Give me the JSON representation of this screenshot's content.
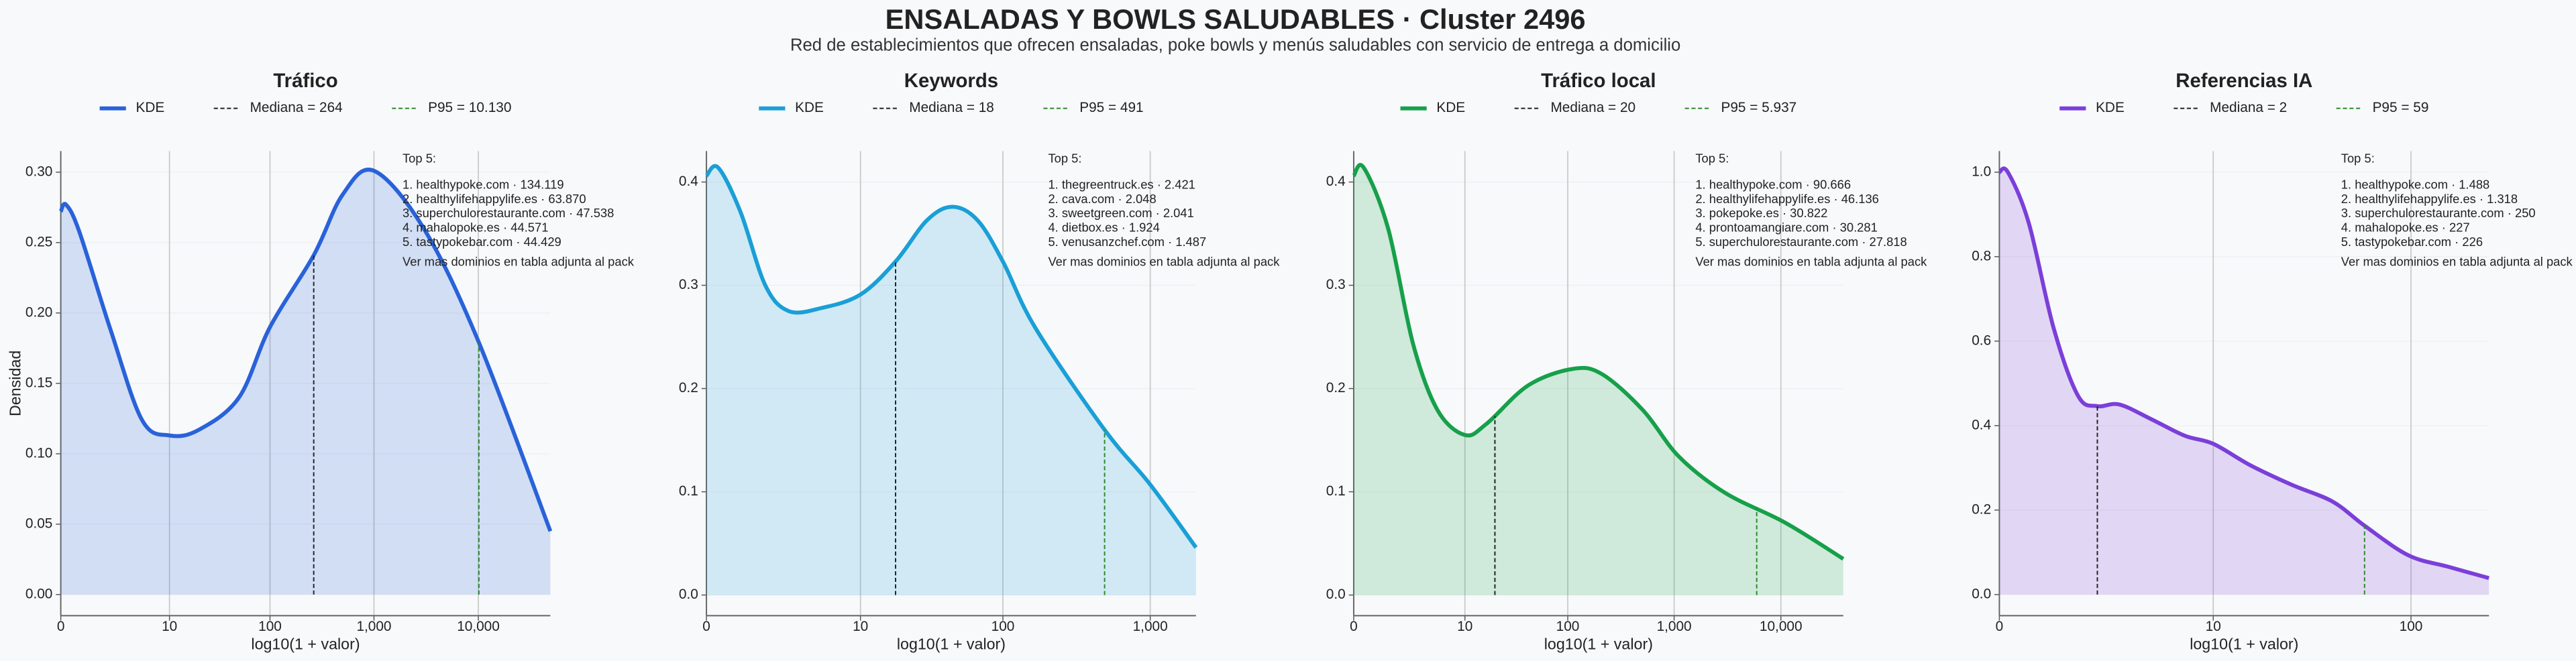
{
  "title": "ENSALADAS Y BOWLS SALUDABLES · Cluster 2496",
  "subtitle": "Red de establecimientos que ofrecen ensaladas, poke bowls y menús saludables con servicio de entrega a domicilio",
  "chart_data": [
    {
      "type": "kde",
      "title": "Tráfico",
      "x_label": "log10(1 + valor)",
      "y_label": "Densidad",
      "xscale": "log1p",
      "grid": true,
      "x": [
        0,
        0.12,
        0.5,
        2,
        5,
        10,
        20,
        50,
        100,
        264,
        500,
        1000,
        3000,
        10000,
        49000
      ],
      "series": [
        {
          "name": "KDE",
          "color": "#2962d9",
          "values": [
            0.272,
            0.277,
            0.258,
            0.188,
            0.124,
            0.113,
            0.117,
            0.14,
            0.19,
            0.241,
            0.284,
            0.301,
            0.26,
            0.18,
            0.045
          ]
        }
      ],
      "median": {
        "value": 264,
        "label": "Mediana = 264",
        "color": "#222222"
      },
      "p95": {
        "value": 10130,
        "label": "P95 = 10.130",
        "color": "#2a8a2a"
      },
      "xlim": [
        0,
        49000
      ],
      "xticks": [
        0,
        10,
        100,
        {
          "value": 1000,
          "label": "1,000"
        },
        {
          "value": 10000,
          "label": "10,000"
        }
      ],
      "ylim": [
        -0.015,
        0.315
      ],
      "yticks": [
        {
          "value": 0,
          "label": "0.00"
        },
        0.05,
        {
          "value": 0.1,
          "label": "0.10"
        },
        0.15,
        {
          "value": 0.2,
          "label": "0.20"
        },
        0.25,
        {
          "value": 0.3,
          "label": "0.30"
        }
      ],
      "annotation": {
        "title": "Top 5:",
        "lines": [
          "1. healthypoke.com · 134.119",
          "2. healthylifehappylife.es · 63.870",
          "3. superchulorestaurante.com · 47.538",
          "4. mahalopoke.es · 44.571",
          "5. tastypokebar.com · 44.429"
        ],
        "note": "Ver mas dominios en tabla adjunta al pack"
      }
    },
    {
      "type": "kde",
      "title": "Keywords",
      "x_label": "log10(1 + valor)",
      "xscale": "log1p",
      "grid": true,
      "x": [
        0,
        0.2,
        0.7,
        1.5,
        2.6,
        5,
        10,
        18,
        30,
        45,
        67,
        100,
        166,
        491,
        1000,
        2040
      ],
      "series": [
        {
          "name": "KDE",
          "color": "#1a9fd6",
          "values": [
            0.406,
            0.414,
            0.371,
            0.3,
            0.275,
            0.278,
            0.291,
            0.323,
            0.363,
            0.376,
            0.363,
            0.323,
            0.259,
            0.16,
            0.107,
            0.046
          ]
        }
      ],
      "median": {
        "value": 18,
        "label": "Mediana = 18",
        "color": "#222222"
      },
      "p95": {
        "value": 491,
        "label": "P95 = 491",
        "color": "#2a8a2a"
      },
      "xlim": [
        0,
        2040
      ],
      "xticks": [
        0,
        10,
        100,
        {
          "value": 1000,
          "label": "1,000"
        }
      ],
      "ylim": [
        -0.02,
        0.43
      ],
      "yticks": [
        {
          "value": 0,
          "label": "0.0"
        },
        0.1,
        0.2,
        0.3,
        0.4
      ],
      "annotation": {
        "title": "Top 5:",
        "lines": [
          "1. thegreentruck.es · 2.421",
          "2. cava.com · 2.048",
          "3. sweetgreen.com · 2.041",
          "4. dietbox.es · 1.924",
          "5. venusanzchef.com · 1.487"
        ],
        "note": "Ver mas dominios en tabla adjunta al pack"
      }
    },
    {
      "type": "kde",
      "title": "Tráfico local",
      "x_label": "log10(1 + valor)",
      "xscale": "log1p",
      "grid": true,
      "x": [
        0,
        0.24,
        1.1,
        2.6,
        5.1,
        10,
        16.6,
        42,
        111,
        210,
        510,
        1110,
        3000,
        11000,
        38400
      ],
      "series": [
        {
          "name": "KDE",
          "color": "#16a04a",
          "values": [
            0.406,
            0.414,
            0.355,
            0.243,
            0.179,
            0.155,
            0.166,
            0.203,
            0.219,
            0.214,
            0.179,
            0.134,
            0.099,
            0.07,
            0.035
          ]
        }
      ],
      "median": {
        "value": 20,
        "label": "Mediana = 20",
        "color": "#222222"
      },
      "p95": {
        "value": 5937,
        "label": "P95 = 5.937",
        "color": "#2a8a2a"
      },
      "xlim": [
        0,
        38400
      ],
      "xticks": [
        0,
        10,
        100,
        {
          "value": 1000,
          "label": "1,000"
        },
        {
          "value": 10000,
          "label": "10,000"
        }
      ],
      "ylim": [
        -0.02,
        0.43
      ],
      "yticks": [
        {
          "value": 0,
          "label": "0.0"
        },
        0.1,
        0.2,
        0.3,
        0.4
      ],
      "annotation": {
        "title": "Top 5:",
        "lines": [
          "1. healthypoke.com · 90.666",
          "2. healthylifehappylife.es · 46.136",
          "3. pokepoke.es · 30.822",
          "4. prontoamangiare.com · 30.281",
          "5. superchulorestaurante.com · 27.818"
        ],
        "note": "Ver mas dominios en tabla adjunta al pack"
      }
    },
    {
      "type": "kde",
      "title": "Referencias IA",
      "x_label": "log10(1 + valor)",
      "xscale": "log1p",
      "grid": true,
      "x": [
        0,
        0.1,
        0.39,
        0.84,
        1.42,
        2,
        2.84,
        4.5,
        7,
        10,
        15.7,
        25.5,
        41,
        59,
        97,
        152,
        241
      ],
      "series": [
        {
          "name": "KDE",
          "color": "#7b3fd9",
          "values": [
            1.0,
            1.0,
            0.88,
            0.63,
            0.47,
            0.446,
            0.45,
            0.415,
            0.376,
            0.357,
            0.306,
            0.26,
            0.22,
            0.163,
            0.093,
            0.066,
            0.039
          ]
        }
      ],
      "median": {
        "value": 2,
        "label": "Mediana = 2",
        "color": "#222222"
      },
      "p95": {
        "value": 59,
        "label": "P95 = 59",
        "color": "#2a8a2a"
      },
      "xlim": [
        0,
        241
      ],
      "xticks": [
        0,
        10,
        100
      ],
      "ylim": [
        -0.05,
        1.05
      ],
      "yticks": [
        {
          "value": 0,
          "label": "0.0"
        },
        0.2,
        0.4,
        0.6,
        0.8,
        {
          "value": 1,
          "label": "1.0"
        }
      ],
      "annotation": {
        "title": "Top 5:",
        "lines": [
          "1. healthypoke.com · 1.488",
          "2. healthylifehappylife.es · 1.318",
          "3. superchulorestaurante.com · 250",
          "4. mahalopoke.es · 227",
          "5. tastypokebar.com · 226"
        ],
        "note": "Ver mas dominios en tabla adjunta al pack"
      }
    }
  ]
}
